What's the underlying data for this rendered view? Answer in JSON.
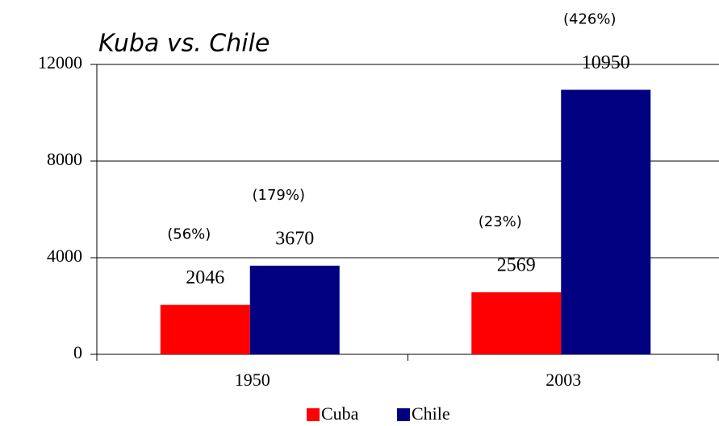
{
  "chart_data": {
    "type": "bar",
    "title": "Kuba vs. Chile",
    "categories": [
      "1950",
      "2003"
    ],
    "series": [
      {
        "name": "Cuba",
        "color": "#ff0000",
        "values": [
          2046,
          2569
        ],
        "annotations": [
          "(56%)",
          "(23%)"
        ]
      },
      {
        "name": "Chile",
        "color": "#000080",
        "values": [
          3670,
          10950
        ],
        "annotations": [
          "(179%)",
          "(426%)"
        ]
      }
    ],
    "ylim": [
      0,
      12000
    ],
    "yticks": [
      0,
      4000,
      8000,
      12000
    ],
    "grid": true,
    "legend": "bottom"
  }
}
